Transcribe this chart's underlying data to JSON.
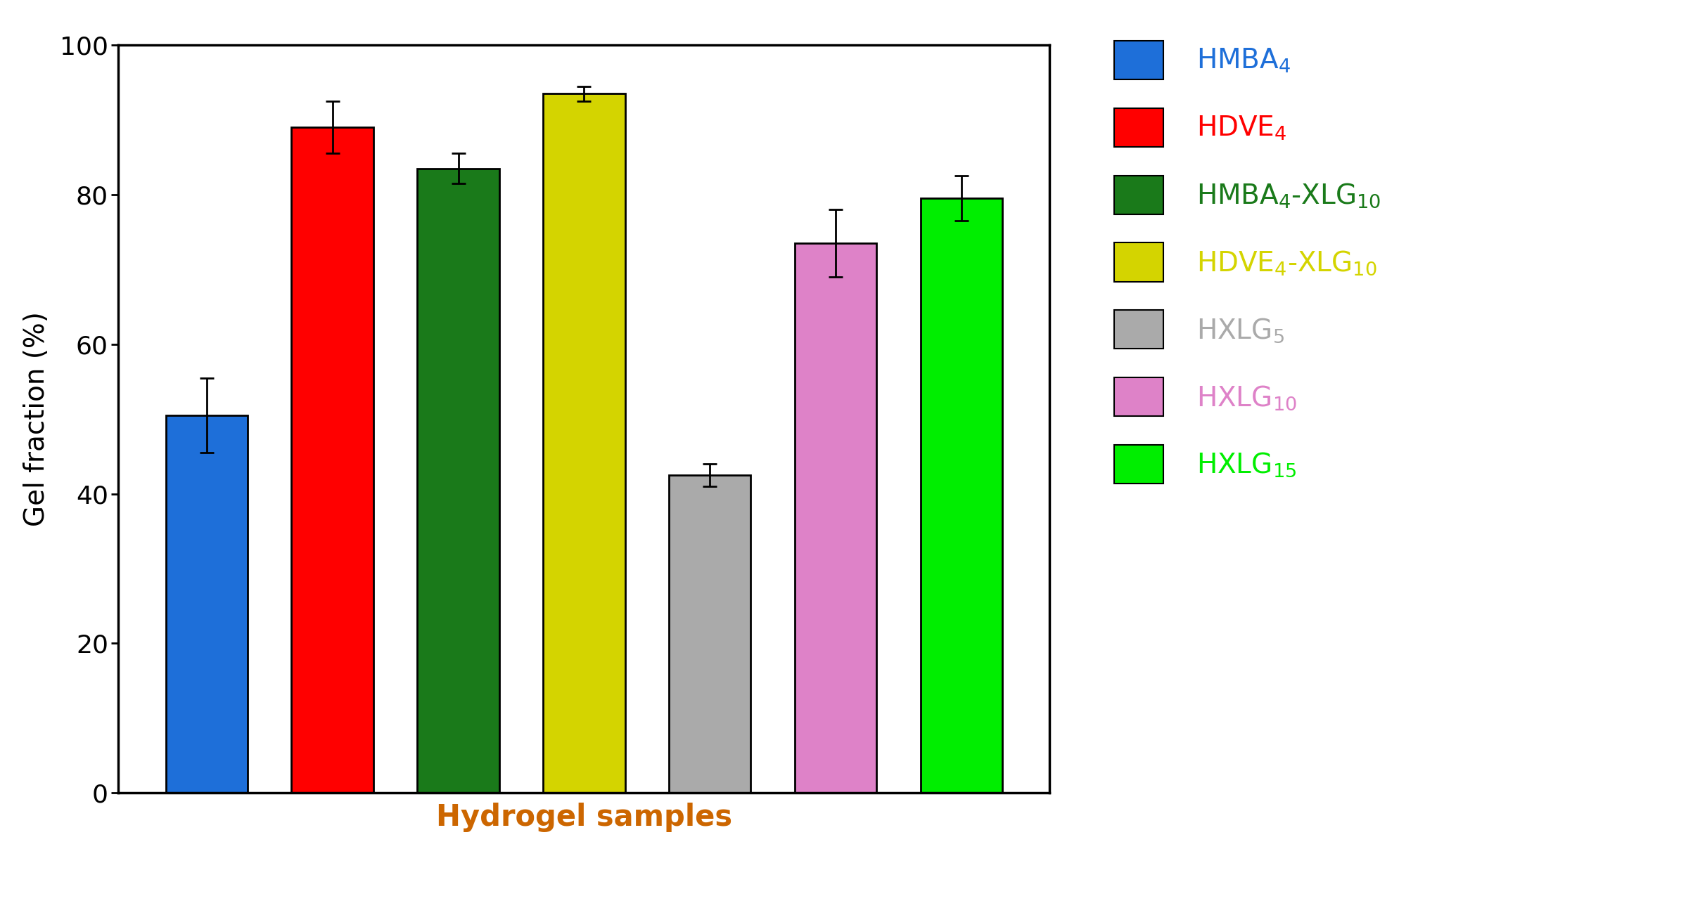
{
  "values": [
    50.5,
    89.0,
    83.5,
    93.5,
    42.5,
    73.5,
    79.5
  ],
  "errors": [
    5.0,
    3.5,
    2.0,
    1.0,
    1.5,
    4.5,
    3.0
  ],
  "bar_colors": [
    "#1E6FD9",
    "#FF0000",
    "#1A7A1A",
    "#D4D400",
    "#AAAAAA",
    "#DE82C8",
    "#00EE00"
  ],
  "bar_edge_colors": [
    "#000000",
    "#000000",
    "#000000",
    "#000000",
    "#000000",
    "#000000",
    "#000000"
  ],
  "ylabel": "Gel fraction (%)",
  "xlabel": "Hydrogel samples",
  "xlabel_color": "#CC6600",
  "ylim": [
    0,
    100
  ],
  "yticks": [
    0,
    20,
    40,
    60,
    80,
    100
  ],
  "legend_colors": [
    "#1E6FD9",
    "#FF0000",
    "#1A7A1A",
    "#D4D400",
    "#AAAAAA",
    "#DE82C8",
    "#00EE00"
  ],
  "legend_text_colors": [
    "#1E6FD9",
    "#FF0000",
    "#1A7A1A",
    "#D4D400",
    "#AAAAAA",
    "#DE82C8",
    "#00EE00"
  ],
  "bar_width": 0.65,
  "figsize": [
    24.07,
    12.82
  ],
  "dpi": 100,
  "tick_font_size": 26,
  "axis_label_font_size": 28,
  "xlabel_font_size": 30,
  "legend_font_size": 28,
  "background_color": "#FFFFFF"
}
